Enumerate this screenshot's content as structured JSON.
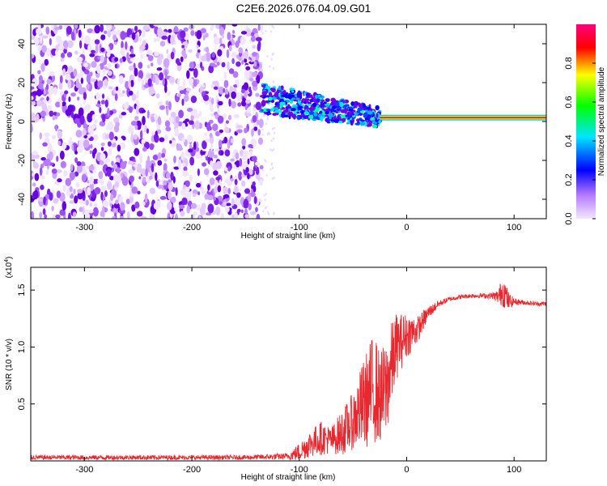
{
  "title": "C2E6.2026.076.04.09.G01",
  "chart_data": [
    {
      "type": "heatmap",
      "xlabel": "Height of straight line (km)",
      "ylabel": "Frequency (Hz)",
      "xlim": [
        -350,
        130
      ],
      "ylim": [
        -50,
        50
      ],
      "xticks": [
        -300,
        -200,
        -100,
        0,
        100
      ],
      "yticks": [
        -40,
        -20,
        0,
        20,
        40
      ],
      "colorbar": {
        "label": "Normalized spectral amplitude",
        "range": [
          0,
          1
        ],
        "ticks": [
          "0.0",
          "0.2",
          "0.4",
          "0.6",
          "0.8"
        ],
        "colors": [
          "#f4e6ff",
          "#7a00e0",
          "#0000ff",
          "#00e0ff",
          "#00ff00",
          "#ffff00",
          "#ff0000",
          "#ff0080"
        ]
      },
      "regions": [
        {
          "name": "noise",
          "x": [
            -350,
            -135
          ],
          "freq_range": [
            -50,
            50
          ],
          "amplitude": "low"
        },
        {
          "name": "signal",
          "x": [
            -135,
            -25
          ],
          "freq_center": [
            12,
            2
          ],
          "spread_hz": 8,
          "amplitude": "medium"
        },
        {
          "name": "carrier",
          "x": [
            -25,
            130
          ],
          "freq_center": 2,
          "amplitude": "high"
        }
      ]
    },
    {
      "type": "line",
      "xlabel": "Height of straight line (km)",
      "ylabel": "SNR (10 * v/v)",
      "scale_label": "(x10",
      "scale_exp": "4",
      "xlim": [
        -350,
        130
      ],
      "ylim": [
        0,
        1.7
      ],
      "xticks": [
        -300,
        -200,
        -100,
        0,
        100
      ],
      "yticks": [
        "0.5",
        "1.0",
        "1.5"
      ],
      "ytick_values": [
        0.5,
        1.0,
        1.5
      ],
      "series": [
        {
          "color": "#e8282e",
          "x": [
            -350,
            -300,
            -250,
            -200,
            -150,
            -110,
            -100,
            -90,
            -80,
            -70,
            -60,
            -50,
            -40,
            -30,
            -25,
            -20,
            -15,
            -10,
            0,
            10,
            20,
            30,
            40,
            50,
            60,
            70,
            80,
            85,
            90,
            95,
            100,
            110,
            120,
            130
          ],
          "y": [
            0.03,
            0.03,
            0.03,
            0.03,
            0.03,
            0.04,
            0.08,
            0.15,
            0.2,
            0.18,
            0.25,
            0.35,
            0.5,
            0.65,
            0.55,
            0.6,
            0.8,
            1.0,
            1.1,
            1.15,
            1.3,
            1.38,
            1.42,
            1.44,
            1.45,
            1.45,
            1.45,
            1.44,
            1.5,
            1.4,
            1.4,
            1.39,
            1.38,
            1.38
          ],
          "jitter": [
            0.02,
            0.02,
            0.02,
            0.02,
            0.02,
            0.03,
            0.08,
            0.12,
            0.15,
            0.12,
            0.2,
            0.25,
            0.4,
            0.5,
            0.4,
            0.45,
            0.4,
            0.3,
            0.2,
            0.12,
            0.06,
            0.03,
            0.02,
            0.02,
            0.02,
            0.02,
            0.03,
            0.06,
            0.15,
            0.08,
            0.03,
            0.02,
            0.02,
            0.02
          ]
        }
      ]
    }
  ]
}
